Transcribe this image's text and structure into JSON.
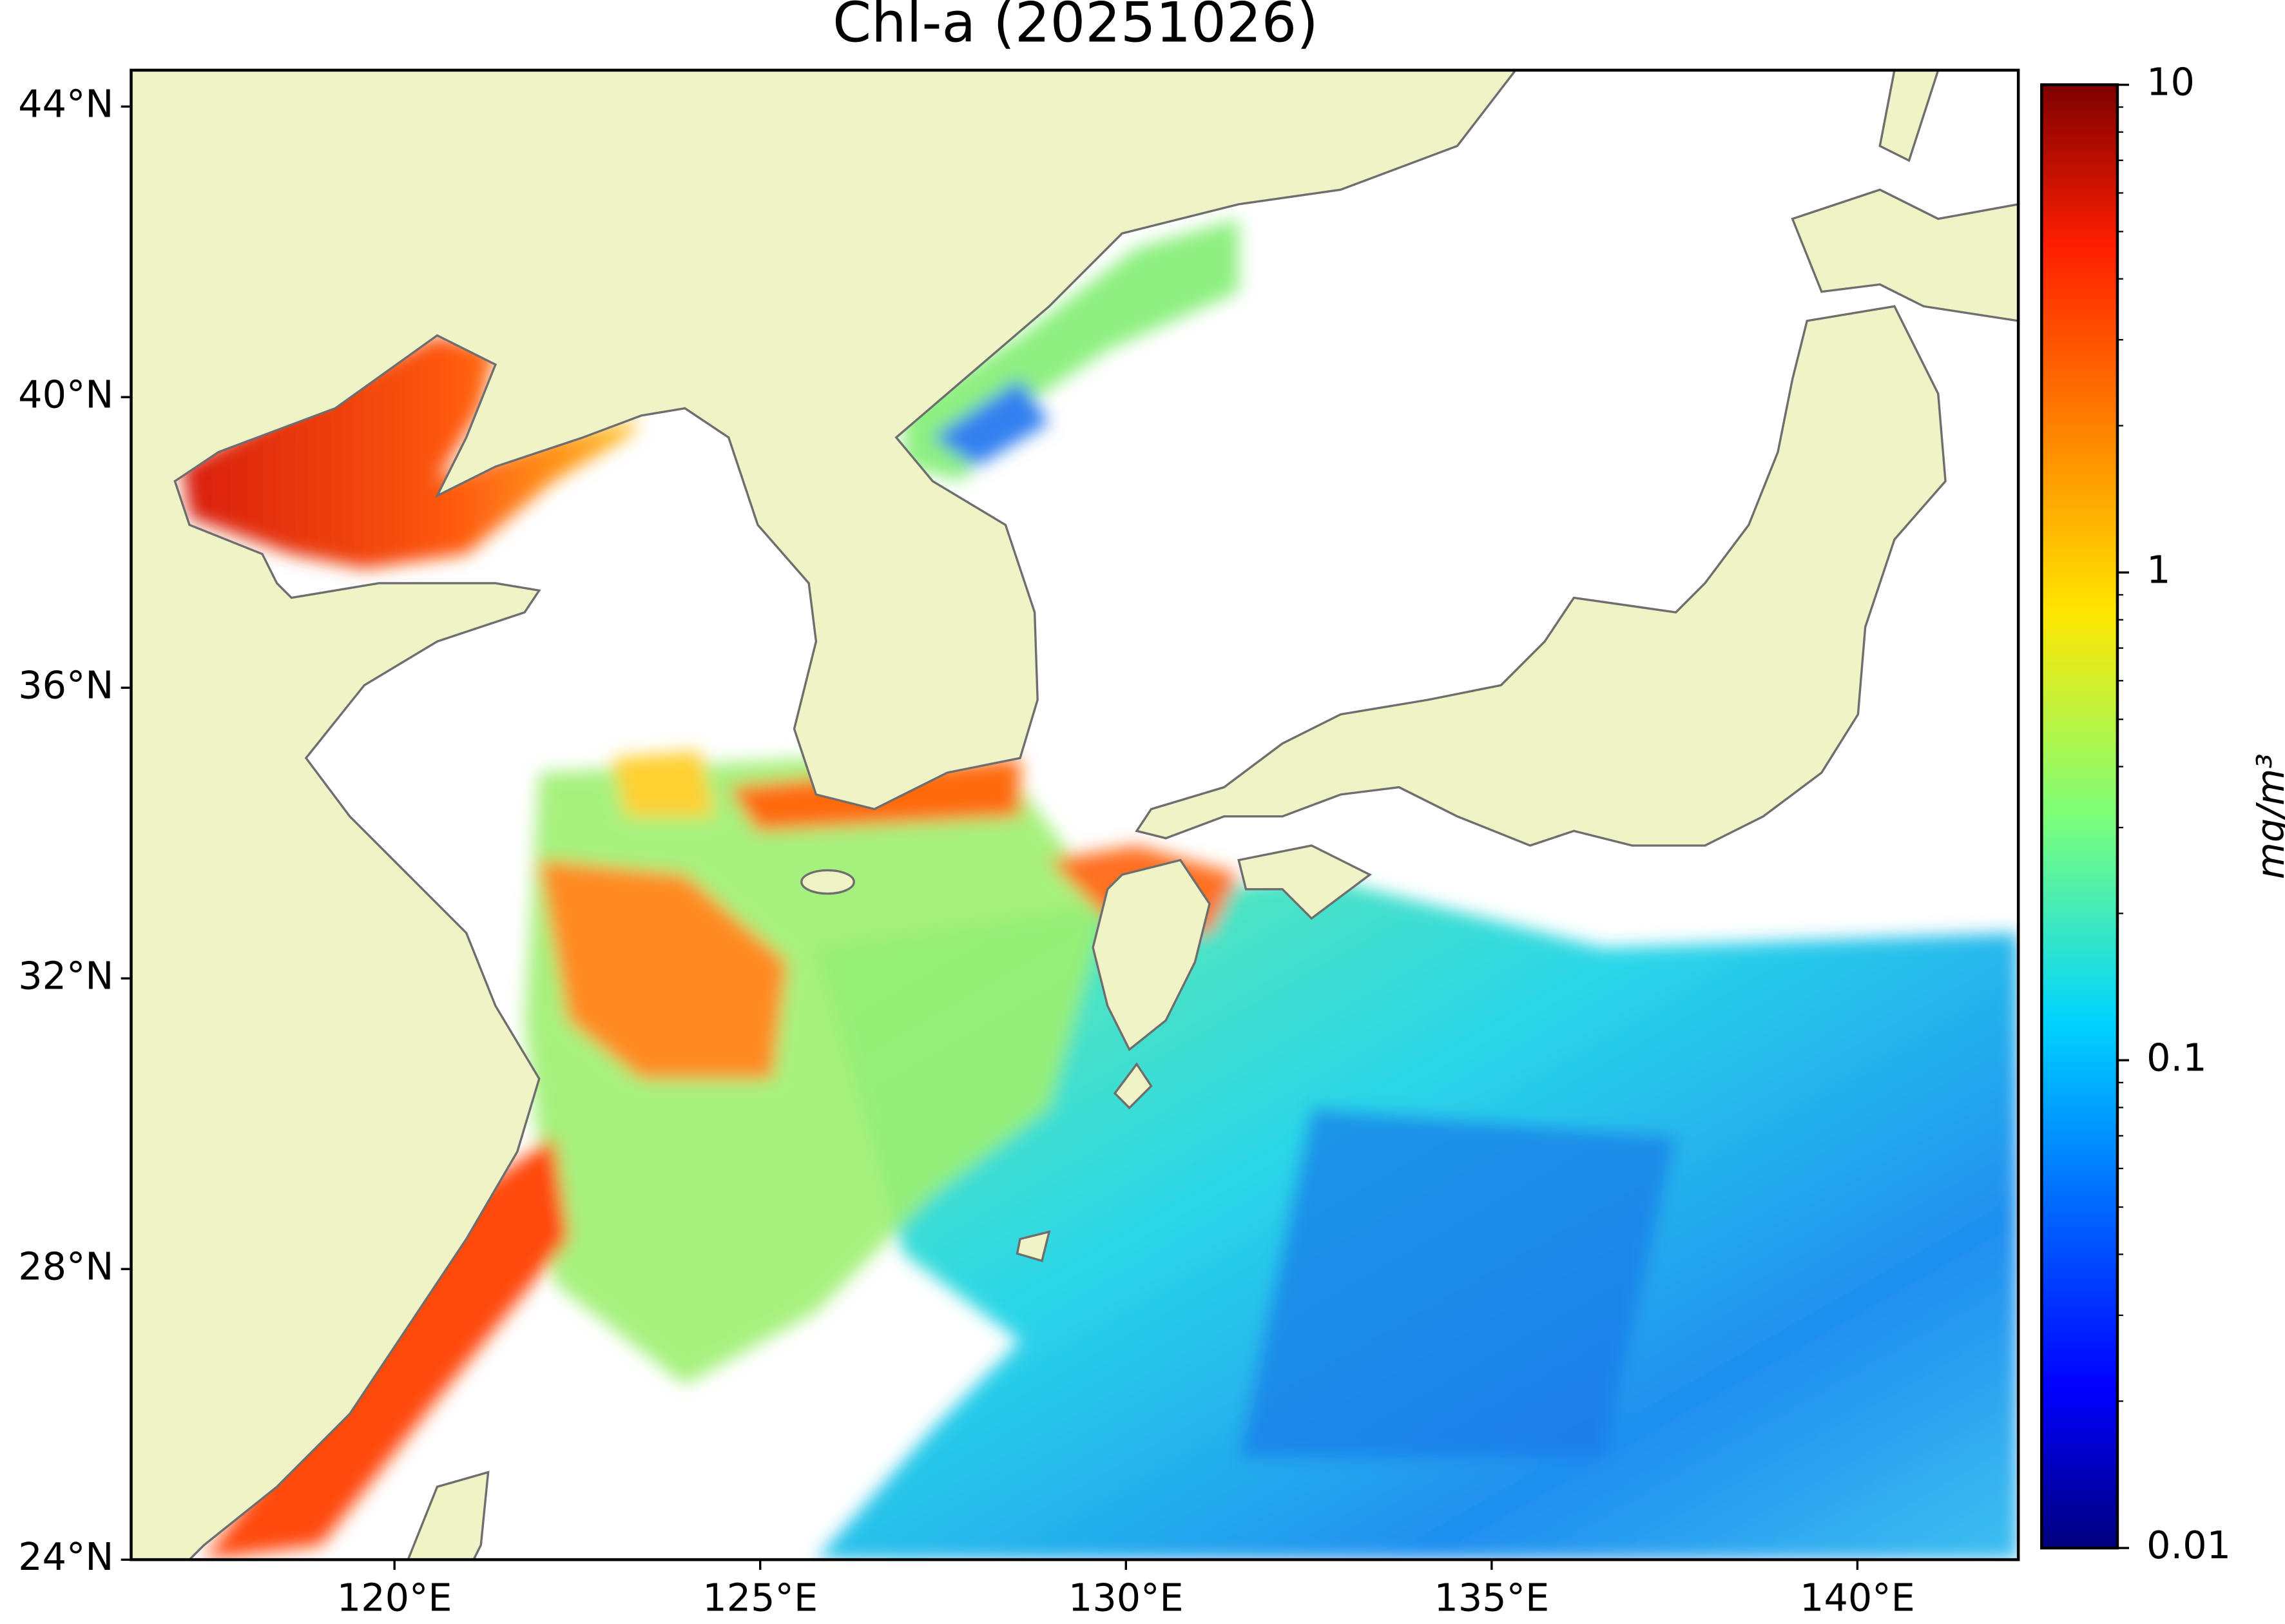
{
  "map": {
    "title": "Chl-a (20251026)",
    "xlim": [
      116.4,
      142.2
    ],
    "ylim": [
      24,
      44.5
    ],
    "xticks": [
      {
        "value": 120,
        "label": "120°E"
      },
      {
        "value": 125,
        "label": "125°E"
      },
      {
        "value": 130,
        "label": "130°E"
      },
      {
        "value": 135,
        "label": "135°E"
      },
      {
        "value": 140,
        "label": "140°E"
      }
    ],
    "yticks": [
      {
        "value": 24,
        "label": "24°N"
      },
      {
        "value": 28,
        "label": "28°N"
      },
      {
        "value": 32,
        "label": "32°N"
      },
      {
        "value": 36,
        "label": "36°N"
      },
      {
        "value": 40,
        "label": "40°N"
      },
      {
        "value": 44,
        "label": "44°N"
      }
    ],
    "colorbar": {
      "label": "mg/m³",
      "scale": "log",
      "lim": [
        0.01,
        10
      ],
      "ticks": [
        0.01,
        0.1,
        1,
        10
      ],
      "minor_ticks": [
        0.02,
        0.03,
        0.04,
        0.05,
        0.06,
        0.07,
        0.08,
        0.09,
        0.2,
        0.3,
        0.4,
        0.5,
        0.6,
        0.7,
        0.8,
        0.9,
        2,
        3,
        4,
        5,
        6,
        7,
        8,
        9
      ]
    }
  }
}
